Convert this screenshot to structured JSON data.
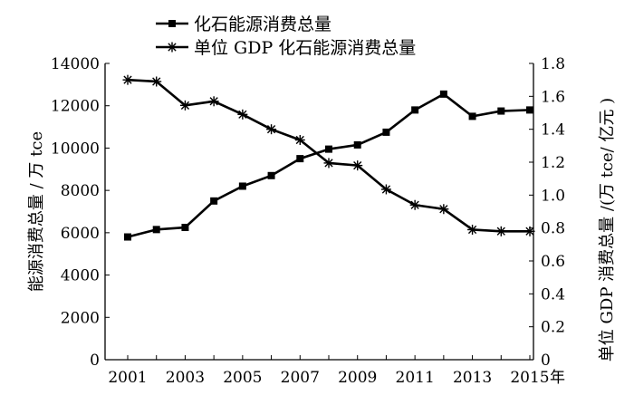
{
  "chart_data": {
    "type": "line",
    "x": [
      2001,
      2002,
      2003,
      2004,
      2005,
      2006,
      2007,
      2008,
      2009,
      2010,
      2011,
      2012,
      2013,
      2014,
      2015
    ],
    "x_tick_labels": [
      "2001",
      "2003",
      "2005",
      "2007",
      "2009",
      "2011",
      "2013",
      "2015"
    ],
    "x_unit": "年",
    "series": [
      {
        "name": "化石能源消费总量",
        "axis": "left",
        "marker": "square",
        "values": [
          5800,
          6150,
          6250,
          7500,
          8200,
          8700,
          9500,
          9950,
          10150,
          10750,
          11800,
          12550,
          11500,
          11750,
          11800
        ]
      },
      {
        "name": "单位 GDP 化石能源消费总量",
        "axis": "right",
        "marker": "star",
        "values": [
          1.7,
          1.69,
          1.545,
          1.57,
          1.49,
          1.4,
          1.335,
          1.195,
          1.18,
          1.035,
          0.94,
          0.915,
          0.79,
          0.78,
          0.78
        ]
      }
    ],
    "y_left": {
      "label": "能源消费总量 / 万 tce",
      "lim": [
        0,
        14000
      ],
      "ticks": [
        "0",
        "2000",
        "4000",
        "6000",
        "8000",
        "10000",
        "12000",
        "14000"
      ]
    },
    "y_right": {
      "label": "单位 GDP 消费总量 /(万 tce/ 亿元 )",
      "lim": [
        0,
        1.8
      ],
      "ticks": [
        "0",
        "0.2",
        "0.4",
        "0.6",
        "0.8",
        "1.0",
        "1.2",
        "1.4",
        "1.6",
        "1.8"
      ]
    },
    "grid": false,
    "legend_position": "top-center",
    "line_color": "#000000"
  }
}
